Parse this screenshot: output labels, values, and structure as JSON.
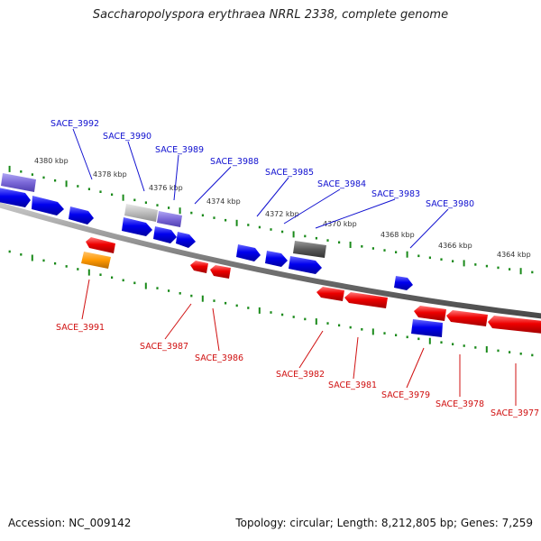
{
  "title": "Saccharopolyspora erythraea NRRL 2338, complete genome",
  "footer": {
    "accession": "Accession: NC_009142",
    "summary": "Topology: circular; Length: 8,212,805 bp; Genes: 7,259"
  },
  "colors": {
    "forward_gene": "#0000ee",
    "reverse_gene": "#ee0000",
    "forward_label": "#1010d0",
    "reverse_label": "#d01010",
    "tick": "#1a8a1a",
    "backbone": "#8a8a8a",
    "rna_gene": "#7b68d8",
    "pseudo_gene": "#bdbdbd",
    "dark_gene": "#5a5a5a",
    "orange_gene": "#ff9900"
  },
  "ticks": [
    "4380 kbp",
    "4378 kbp",
    "4376 kbp",
    "4374 kbp",
    "4372 kbp",
    "4370 kbp",
    "4368 kbp",
    "4366 kbp",
    "4364 kbp"
  ],
  "forward_labels": [
    "SACE_3992",
    "SACE_3990",
    "SACE_3989",
    "SACE_3988",
    "SACE_3985",
    "SACE_3984",
    "SACE_3983",
    "SACE_3980"
  ],
  "reverse_labels": [
    "SACE_3991",
    "SACE_3987",
    "SACE_3986",
    "SACE_3982",
    "SACE_3981",
    "SACE_3979",
    "SACE_3978",
    "SACE_3977"
  ]
}
